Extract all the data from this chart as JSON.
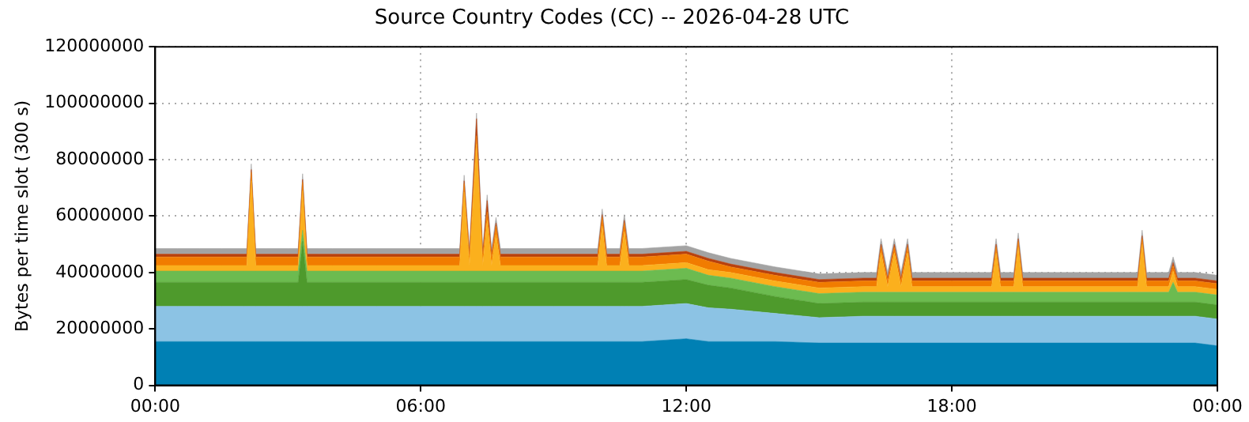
{
  "chart_data": {
    "type": "area",
    "stacked": true,
    "title": "Source Country Codes (CC) -- 2026-04-28 UTC",
    "ylabel": "Bytes per time slot (300 s)",
    "x": [
      0,
      0.5,
      1,
      1.5,
      2,
      2.07,
      2.17,
      2.27,
      2.5,
      3,
      3.23,
      3.33,
      3.43,
      3.7,
      4,
      5,
      6,
      6.88,
      6.98,
      7.1,
      7.26,
      7.4,
      7.5,
      7.6,
      7.7,
      7.8,
      8,
      9,
      10,
      10.1,
      10.2,
      10.5,
      10.6,
      10.7,
      11,
      12,
      12.5,
      13,
      14,
      15,
      16,
      16.3,
      16.4,
      16.55,
      16.7,
      16.85,
      17,
      17.1,
      17.5,
      18,
      18.9,
      19,
      19.1,
      19.4,
      19.5,
      19.6,
      20,
      21,
      22,
      22.2,
      22.3,
      22.4,
      22.9,
      23,
      23.1,
      23.5,
      24
    ],
    "xlim": [
      0,
      24
    ],
    "xticks": [
      {
        "value": 0,
        "label": "00:00"
      },
      {
        "value": 6,
        "label": "06:00"
      },
      {
        "value": 12,
        "label": "12:00"
      },
      {
        "value": 18,
        "label": "18:00"
      },
      {
        "value": 24,
        "label": "00:00"
      }
    ],
    "ylim": [
      0,
      120000000
    ],
    "yticks": [
      0,
      20000000,
      40000000,
      60000000,
      80000000,
      100000000,
      120000000
    ],
    "grid": true,
    "legend": false,
    "series": [
      {
        "color": "#0080b4",
        "values": [
          15500000,
          15500000,
          15500000,
          15500000,
          15500000,
          15500000,
          15500000,
          15500000,
          15500000,
          15500000,
          15500000,
          15500000,
          15500000,
          15500000,
          15500000,
          15500000,
          15500000,
          15500000,
          15500000,
          15500000,
          15500000,
          15500000,
          15500000,
          15500000,
          15500000,
          15500000,
          15500000,
          15500000,
          15500000,
          15500000,
          15500000,
          15500000,
          15500000,
          15500000,
          15500000,
          16500000,
          15500000,
          15500000,
          15500000,
          15000000,
          15000000,
          15000000,
          15000000,
          15000000,
          15000000,
          15000000,
          15000000,
          15000000,
          15000000,
          15000000,
          15000000,
          15000000,
          15000000,
          15000000,
          15000000,
          15000000,
          15000000,
          15000000,
          15000000,
          15000000,
          15000000,
          15000000,
          15000000,
          15000000,
          15000000,
          15000000,
          14000000
        ]
      },
      {
        "color": "#8cc3e4",
        "values": [
          12500000,
          12500000,
          12500000,
          12500000,
          12500000,
          12500000,
          12500000,
          12500000,
          12500000,
          12500000,
          12500000,
          12500000,
          12500000,
          12500000,
          12500000,
          12500000,
          12500000,
          12500000,
          12500000,
          12500000,
          12500000,
          12500000,
          12500000,
          12500000,
          12500000,
          12500000,
          12500000,
          12500000,
          12500000,
          12500000,
          12500000,
          12500000,
          12500000,
          12500000,
          12500000,
          12500000,
          12000000,
          11500000,
          10000000,
          9000000,
          9500000,
          9500000,
          9500000,
          9500000,
          9500000,
          9500000,
          9500000,
          9500000,
          9500000,
          9500000,
          9500000,
          9500000,
          9500000,
          9500000,
          9500000,
          9500000,
          9500000,
          9500000,
          9500000,
          9500000,
          9500000,
          9500000,
          9500000,
          9500000,
          9500000,
          9500000,
          9500000
        ]
      },
      {
        "color": "#4e9a2c",
        "values": [
          8500000,
          8500000,
          8500000,
          8500000,
          8500000,
          8500000,
          8500000,
          8500000,
          8500000,
          8500000,
          8500000,
          23000000,
          8500000,
          8500000,
          8500000,
          8500000,
          8500000,
          8500000,
          8500000,
          8500000,
          8500000,
          8500000,
          8500000,
          8500000,
          8500000,
          8500000,
          8500000,
          8500000,
          8500000,
          8500000,
          8500000,
          8500000,
          8500000,
          8500000,
          8500000,
          8500000,
          8000000,
          7500000,
          6000000,
          5000000,
          5000000,
          5000000,
          5000000,
          5000000,
          5000000,
          5000000,
          5000000,
          5000000,
          5000000,
          5000000,
          5000000,
          5000000,
          5000000,
          5000000,
          5000000,
          5000000,
          5000000,
          5000000,
          5000000,
          5000000,
          5000000,
          5000000,
          5000000,
          5000000,
          5000000,
          5000000,
          5000000
        ]
      },
      {
        "color": "#6cbb50",
        "values": [
          4000000,
          4000000,
          4000000,
          4000000,
          4000000,
          4000000,
          4000000,
          4000000,
          4000000,
          4000000,
          4000000,
          4000000,
          4000000,
          4000000,
          4000000,
          4000000,
          4000000,
          4000000,
          4000000,
          4000000,
          4000000,
          4000000,
          4000000,
          4000000,
          4000000,
          4000000,
          4000000,
          4000000,
          4000000,
          4000000,
          4000000,
          4000000,
          4000000,
          4000000,
          4000000,
          4000000,
          3500000,
          3500000,
          3500000,
          3500000,
          3500000,
          3500000,
          3500000,
          3500000,
          3500000,
          3500000,
          3500000,
          3500000,
          3500000,
          3500000,
          3500000,
          3500000,
          3500000,
          3500000,
          3500000,
          3500000,
          3500000,
          3500000,
          3500000,
          3500000,
          3500000,
          3500000,
          3500000,
          7000000,
          3500000,
          3500000,
          3500000
        ]
      },
      {
        "color": "#fbb01d",
        "values": [
          2000000,
          2000000,
          2000000,
          2000000,
          2000000,
          2000000,
          32000000,
          2000000,
          2000000,
          2000000,
          2000000,
          14000000,
          2000000,
          2000000,
          2000000,
          2000000,
          2000000,
          2000000,
          28000000,
          2000000,
          45000000,
          2000000,
          18000000,
          2000000,
          13000000,
          2000000,
          2000000,
          2000000,
          2000000,
          16000000,
          2000000,
          2000000,
          14000000,
          2000000,
          2000000,
          2000000,
          2000000,
          2000000,
          2000000,
          2000000,
          2000000,
          2000000,
          14000000,
          2000000,
          14000000,
          2000000,
          14000000,
          2000000,
          2000000,
          2000000,
          2000000,
          14000000,
          2000000,
          2000000,
          16000000,
          2000000,
          2000000,
          2000000,
          2000000,
          2000000,
          17000000,
          2000000,
          2000000,
          4000000,
          2000000,
          2000000,
          2000000
        ]
      },
      {
        "color": "#f17c00",
        "values": [
          3000000,
          3000000,
          3000000,
          3000000,
          3000000,
          3000000,
          3000000,
          3000000,
          3000000,
          3000000,
          3000000,
          3000000,
          3000000,
          3000000,
          3000000,
          3000000,
          3000000,
          3000000,
          3000000,
          3000000,
          3000000,
          3000000,
          3000000,
          3000000,
          3000000,
          3000000,
          3000000,
          3000000,
          3000000,
          3000000,
          3000000,
          3000000,
          3000000,
          3000000,
          3000000,
          3000000,
          3000000,
          2000000,
          2000000,
          2000000,
          2000000,
          2000000,
          2000000,
          2000000,
          2000000,
          2000000,
          2000000,
          2000000,
          2000000,
          2000000,
          2000000,
          2000000,
          2000000,
          2000000,
          2000000,
          2000000,
          2000000,
          2000000,
          2000000,
          2000000,
          2000000,
          2000000,
          2000000,
          2000000,
          2000000,
          2000000,
          2000000
        ]
      },
      {
        "color": "#b8410e",
        "values": [
          1000000,
          1000000,
          1000000,
          1000000,
          1000000,
          1000000,
          1000000,
          1000000,
          1000000,
          1000000,
          1000000,
          1000000,
          1000000,
          1000000,
          1000000,
          1000000,
          1000000,
          1000000,
          1000000,
          1000000,
          6000000,
          1000000,
          4000000,
          1000000,
          1000000,
          1000000,
          1000000,
          1000000,
          1000000,
          1000000,
          1000000,
          1000000,
          1000000,
          1000000,
          1000000,
          1000000,
          1000000,
          1000000,
          1000000,
          1000000,
          1000000,
          1000000,
          1000000,
          1000000,
          1000000,
          1000000,
          1000000,
          1000000,
          1000000,
          1000000,
          1000000,
          1000000,
          1000000,
          1000000,
          1000000,
          1000000,
          1000000,
          1000000,
          1000000,
          1000000,
          1000000,
          1000000,
          1000000,
          1000000,
          1000000,
          1000000,
          1000000
        ]
      },
      {
        "color": "#a3a3a3",
        "values": [
          2000000,
          2000000,
          2000000,
          2000000,
          2000000,
          2000000,
          2000000,
          2000000,
          2000000,
          2000000,
          2000000,
          2000000,
          2000000,
          2000000,
          2000000,
          2000000,
          2000000,
          2000000,
          2000000,
          2000000,
          2000000,
          2000000,
          2000000,
          2000000,
          2000000,
          2000000,
          2000000,
          2000000,
          2000000,
          2000000,
          2000000,
          2000000,
          2000000,
          2000000,
          2000000,
          2000000,
          2000000,
          2000000,
          2000000,
          2000000,
          2000000,
          2000000,
          2000000,
          2000000,
          2000000,
          2000000,
          2000000,
          2000000,
          2000000,
          2000000,
          2000000,
          2000000,
          2000000,
          2000000,
          2000000,
          2000000,
          2000000,
          2000000,
          2000000,
          2000000,
          2000000,
          2000000,
          2000000,
          2000000,
          2000000,
          2000000,
          2000000
        ]
      }
    ]
  }
}
